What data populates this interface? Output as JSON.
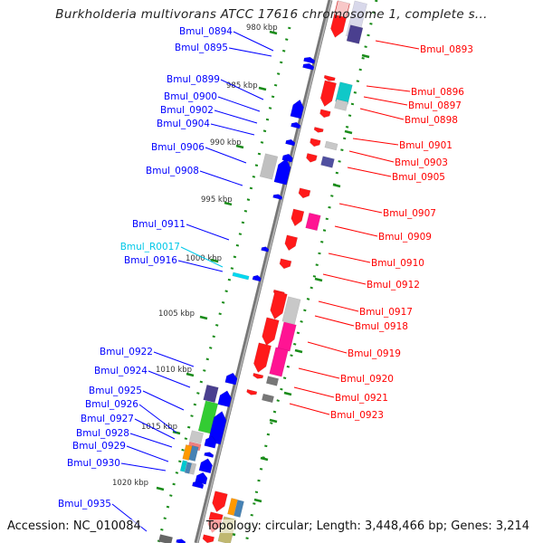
{
  "title": "Burkholderia multivorans ATCC 17616 chromosome 1, complete s...",
  "footer": {
    "accession": "Accession: NC_010084",
    "summary": "Topology: circular; Length: 3,448,466 bp; Genes: 3,214"
  },
  "colors": {
    "forward": "#0000ff",
    "reverse": "#ff0000",
    "rna": "#00c8e8",
    "ticks": "#1a8c1a",
    "backbone": "#888888"
  },
  "scale_labels": [
    "980 kbp",
    "985 kbp",
    "990 kbp",
    "995 kbp",
    "1000 kbp",
    "1005 kbp",
    "1010 kbp",
    "1015 kbp",
    "1020 kbp"
  ],
  "left_genes": [
    "Bmul_0894",
    "Bmul_0895",
    "Bmul_0899",
    "Bmul_0900",
    "Bmul_0902",
    "Bmul_0904",
    "Bmul_0906",
    "Bmul_0908",
    "Bmul_0911",
    "Bmul_R0017",
    "Bmul_0916",
    "Bmul_0922",
    "Bmul_0924",
    "Bmul_0925",
    "Bmul_0926",
    "Bmul_0927",
    "Bmul_0928",
    "Bmul_0929",
    "Bmul_0930",
    "Bmul_0935"
  ],
  "right_genes": [
    "Bmul_0893",
    "Bmul_0896",
    "Bmul_0897",
    "Bmul_0898",
    "Bmul_0901",
    "Bmul_0903",
    "Bmul_0905",
    "Bmul_0907",
    "Bmul_0909",
    "Bmul_0910",
    "Bmul_0912",
    "Bmul_0917",
    "Bmul_0918",
    "Bmul_0919",
    "Bmul_0920",
    "Bmul_0921",
    "Bmul_0923"
  ]
}
